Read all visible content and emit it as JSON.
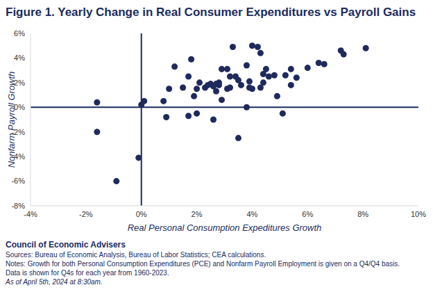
{
  "chart_data": {
    "type": "scatter",
    "title": "Figure 1. Yearly Change in Real Consumer Expenditures vs Payroll Gains",
    "x_label": "Real Personal Consumption Expeditures Growth",
    "y_label": "Nonfarm Payroll Growth",
    "x": [
      -1.6,
      -1.6,
      -0.9,
      -0.1,
      0.0,
      0.1,
      0.8,
      0.9,
      1.0,
      1.2,
      1.5,
      1.7,
      1.7,
      1.8,
      1.9,
      2.0,
      2.0,
      2.1,
      2.3,
      2.4,
      2.5,
      2.6,
      2.6,
      2.7,
      2.7,
      2.8,
      2.8,
      2.9,
      2.9,
      3.1,
      3.1,
      3.2,
      3.2,
      3.3,
      3.4,
      3.5,
      3.5,
      3.6,
      3.8,
      3.8,
      3.9,
      3.9,
      4.0,
      4.0,
      4.2,
      4.3,
      4.3,
      4.4,
      4.4,
      4.5,
      4.6,
      4.8,
      4.9,
      5.1,
      5.2,
      5.4,
      5.4,
      5.6,
      6.0,
      6.4,
      6.6,
      7.2,
      7.3,
      8.1
    ],
    "values": [
      0.4,
      -2.0,
      -6.0,
      -4.1,
      0.2,
      0.5,
      0.5,
      -0.8,
      1.5,
      3.3,
      1.6,
      -0.7,
      2.5,
      3.9,
      0.9,
      -0.5,
      1.5,
      2.0,
      1.6,
      1.8,
      1.9,
      1.7,
      -1.0,
      1.3,
      1.9,
      2.0,
      1.8,
      3.1,
      0.6,
      1.5,
      3.1,
      2.5,
      1.6,
      4.9,
      2.5,
      2.2,
      -2.5,
      1.8,
      3.4,
      0.0,
      1.6,
      2.1,
      5.0,
      1.5,
      4.9,
      4.4,
      1.6,
      2.0,
      2.7,
      3.1,
      2.5,
      2.6,
      0.9,
      -0.5,
      2.6,
      3.1,
      1.8,
      2.4,
      3.2,
      3.6,
      3.5,
      4.6,
      4.3,
      4.8
    ],
    "color": "#1f2a5c",
    "marker": "circle",
    "grid": false,
    "xlim": [
      -4,
      10
    ],
    "ylim": [
      -8,
      6
    ],
    "xticks": [
      {
        "value": -4,
        "label": "-4%"
      },
      {
        "value": -2,
        "label": "-2%"
      },
      {
        "value": 0,
        "label": "0%"
      },
      {
        "value": 2,
        "label": "2%"
      },
      {
        "value": 4,
        "label": "4%"
      },
      {
        "value": 6,
        "label": "6%"
      },
      {
        "value": 8,
        "label": "8%"
      },
      {
        "value": 10,
        "label": "10%"
      }
    ],
    "yticks": [
      {
        "value": -8,
        "label": "-8%"
      },
      {
        "value": -6,
        "label": "-6%"
      },
      {
        "value": -4,
        "label": "-4%"
      },
      {
        "value": -2,
        "label": "-2%"
      },
      {
        "value": 0,
        "label": "0%"
      },
      {
        "value": 2,
        "label": "2%"
      },
      {
        "value": 4,
        "label": "4%"
      },
      {
        "value": 6,
        "label": "6%"
      }
    ],
    "annotations": [
      "Council of Economic Advisers",
      "Sources: Bureau of Economic Analysis, Bureau of Labor Statistics; CEA calculations.",
      "Notes: Growth for both Personal Consumption Expenditures (PCE) and Nonfarm Payroll Employment is given on a Q4/Q4 basis.",
      "Data is shown for Q4s for each year from 1960-2023.",
      "As of April 5th, 2024 at 8:30am."
    ]
  }
}
